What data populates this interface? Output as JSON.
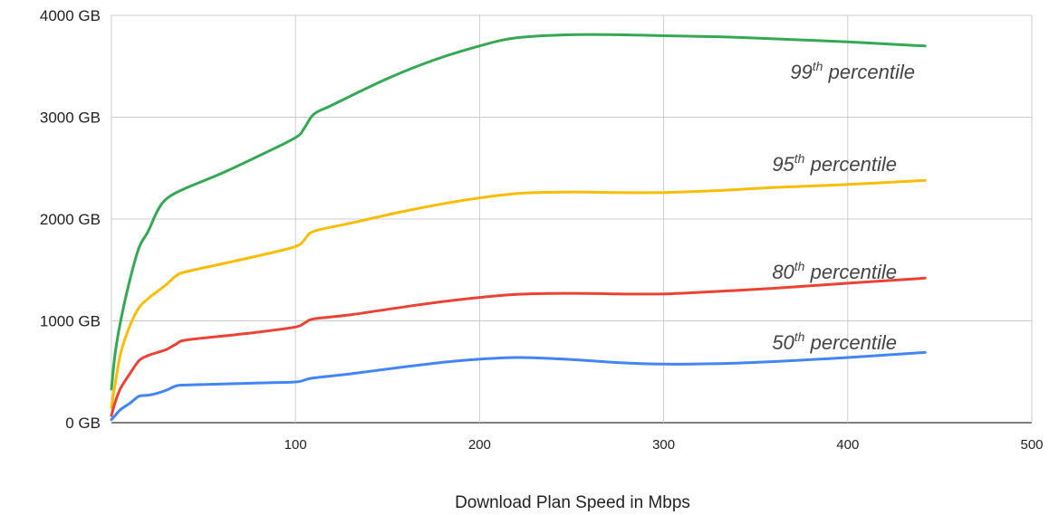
{
  "chart_data": {
    "type": "line",
    "title": "",
    "xlabel": "Download Plan Speed in Mbps",
    "ylabel": "",
    "xlim": [
      0,
      500
    ],
    "ylim": [
      0,
      4000
    ],
    "x_ticks": [
      100,
      200,
      300,
      400,
      500
    ],
    "x_tick_labels": [
      "100",
      "200",
      "300",
      "400",
      "500"
    ],
    "y_ticks": [
      0,
      1000,
      2000,
      3000,
      4000
    ],
    "y_tick_labels": [
      "0 GB",
      "1000 GB",
      "2000 GB",
      "3000 GB",
      "4000 GB"
    ],
    "grid": true,
    "legend": "none",
    "series": [
      {
        "name": "99th percentile",
        "color": "#34a853",
        "label_num": "99",
        "label_sup": "th",
        "label_rest": " percentile",
        "points": [
          [
            0,
            330
          ],
          [
            2,
            680
          ],
          [
            5,
            1000
          ],
          [
            10,
            1400
          ],
          [
            15,
            1720
          ],
          [
            20,
            1880
          ],
          [
            25,
            2080
          ],
          [
            30,
            2200
          ],
          [
            40,
            2300
          ],
          [
            60,
            2450
          ],
          [
            80,
            2620
          ],
          [
            100,
            2800
          ],
          [
            105,
            2900
          ],
          [
            110,
            3030
          ],
          [
            120,
            3120
          ],
          [
            150,
            3380
          ],
          [
            175,
            3560
          ],
          [
            200,
            3700
          ],
          [
            220,
            3780
          ],
          [
            250,
            3810
          ],
          [
            275,
            3810
          ],
          [
            300,
            3800
          ],
          [
            330,
            3790
          ],
          [
            360,
            3770
          ],
          [
            400,
            3740
          ],
          [
            442,
            3700
          ]
        ]
      },
      {
        "name": "95th percentile",
        "color": "#fbbc04",
        "label_num": "95",
        "label_sup": "th",
        "label_rest": " percentile",
        "points": [
          [
            0,
            150
          ],
          [
            2,
            380
          ],
          [
            5,
            680
          ],
          [
            10,
            950
          ],
          [
            15,
            1130
          ],
          [
            20,
            1220
          ],
          [
            25,
            1290
          ],
          [
            30,
            1360
          ],
          [
            35,
            1440
          ],
          [
            40,
            1480
          ],
          [
            60,
            1560
          ],
          [
            80,
            1640
          ],
          [
            100,
            1730
          ],
          [
            105,
            1800
          ],
          [
            110,
            1880
          ],
          [
            130,
            1960
          ],
          [
            160,
            2080
          ],
          [
            190,
            2180
          ],
          [
            220,
            2250
          ],
          [
            250,
            2265
          ],
          [
            275,
            2260
          ],
          [
            300,
            2260
          ],
          [
            330,
            2280
          ],
          [
            360,
            2310
          ],
          [
            400,
            2340
          ],
          [
            442,
            2380
          ]
        ]
      },
      {
        "name": "80th percentile",
        "color": "#ea4335",
        "label_num": "80",
        "label_sup": "th",
        "label_rest": " percentile",
        "points": [
          [
            0,
            70
          ],
          [
            2,
            200
          ],
          [
            5,
            340
          ],
          [
            10,
            480
          ],
          [
            15,
            610
          ],
          [
            20,
            660
          ],
          [
            25,
            690
          ],
          [
            30,
            720
          ],
          [
            35,
            770
          ],
          [
            40,
            810
          ],
          [
            60,
            850
          ],
          [
            80,
            890
          ],
          [
            100,
            940
          ],
          [
            105,
            980
          ],
          [
            110,
            1020
          ],
          [
            130,
            1060
          ],
          [
            160,
            1140
          ],
          [
            190,
            1210
          ],
          [
            220,
            1260
          ],
          [
            250,
            1270
          ],
          [
            275,
            1265
          ],
          [
            300,
            1265
          ],
          [
            330,
            1290
          ],
          [
            360,
            1320
          ],
          [
            400,
            1370
          ],
          [
            442,
            1420
          ]
        ]
      },
      {
        "name": "50th percentile",
        "color": "#4285f4",
        "label_num": "50",
        "label_sup": "th",
        "label_rest": " percentile",
        "points": [
          [
            0,
            30
          ],
          [
            2,
            70
          ],
          [
            5,
            130
          ],
          [
            10,
            190
          ],
          [
            15,
            260
          ],
          [
            20,
            270
          ],
          [
            25,
            290
          ],
          [
            30,
            320
          ],
          [
            35,
            360
          ],
          [
            40,
            370
          ],
          [
            60,
            380
          ],
          [
            80,
            390
          ],
          [
            100,
            400
          ],
          [
            105,
            420
          ],
          [
            110,
            440
          ],
          [
            130,
            480
          ],
          [
            160,
            550
          ],
          [
            190,
            610
          ],
          [
            220,
            640
          ],
          [
            250,
            620
          ],
          [
            275,
            590
          ],
          [
            300,
            575
          ],
          [
            330,
            580
          ],
          [
            360,
            600
          ],
          [
            400,
            640
          ],
          [
            442,
            690
          ]
        ]
      }
    ]
  }
}
